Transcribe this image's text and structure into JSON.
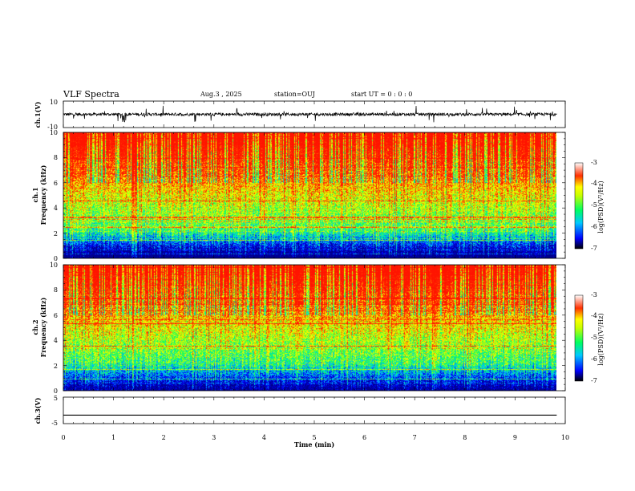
{
  "header": {
    "title": "VLF Spectra",
    "date": "Aug.3 , 2025",
    "station": "station=OUJ",
    "start_time": "start UT = 0 : 0 : 0"
  },
  "colors": {
    "spectrogram_low": "#00008b",
    "spectrogram_mid": "#00ff7f",
    "spectrogram_high": "#ff2000",
    "trace": "#000000"
  },
  "chart_data": [
    {
      "type": "line",
      "name": "ch1-waveform",
      "ylabel": "ch.1(V)",
      "yticks": [
        "10",
        "-10"
      ],
      "ylim": [
        -10,
        10
      ],
      "xlim": [
        0,
        10
      ],
      "description": "broadband noise trace centered near 0 V with impulsive spikes"
    },
    {
      "type": "heatmap",
      "name": "ch1-spectrogram",
      "ylabel_channel": "ch.1",
      "ylabel": "Frequency (kHz)",
      "yticks": [
        "0",
        "2",
        "4",
        "6",
        "8",
        "10"
      ],
      "ylim": [
        0,
        10
      ],
      "xlim": [
        0,
        10.0
      ],
      "data_end_min": 9.83,
      "colorbar": {
        "label": "log(PSD)(V²/Hz)",
        "ticks": [
          "-3",
          "-4",
          "-5",
          "-6",
          "-7"
        ],
        "range": [
          -7,
          -3
        ]
      }
    },
    {
      "type": "heatmap",
      "name": "ch2-spectrogram",
      "ylabel_channel": "ch.2",
      "ylabel": "Frequency (kHz)",
      "yticks": [
        "0",
        "2",
        "4",
        "6",
        "8",
        "10"
      ],
      "ylim": [
        0,
        10
      ],
      "xlim": [
        0,
        10.0
      ],
      "data_end_min": 9.83,
      "colorbar": {
        "label": "log(PSD)(V²/Hz)",
        "ticks": [
          "-3",
          "-4",
          "-5",
          "-6",
          "-7"
        ],
        "range": [
          -7,
          -3
        ]
      }
    },
    {
      "type": "line",
      "name": "ch3-waveform",
      "ylabel": "ch.3(V)",
      "yticks": [
        "5",
        "-5"
      ],
      "ylim": [
        -5,
        5
      ],
      "xlim": [
        0,
        10
      ],
      "x": [
        0,
        9.83
      ],
      "y": [
        -1.8,
        -1.8
      ]
    }
  ],
  "xaxis": {
    "label": "Time (min)",
    "ticks": [
      "0",
      "1",
      "2",
      "3",
      "4",
      "5",
      "6",
      "7",
      "8",
      "9",
      "10"
    ]
  }
}
